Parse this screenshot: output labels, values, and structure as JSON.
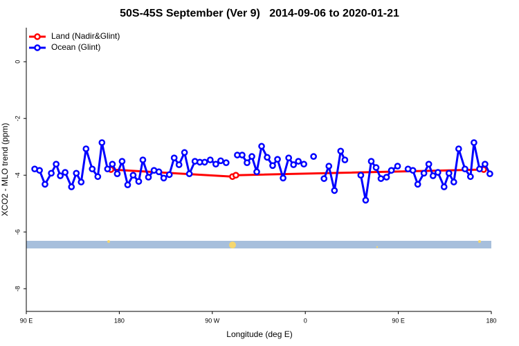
{
  "chart_data": {
    "type": "line",
    "title": "50S-45S September (Ver 9)   2014-09-06 to 2020-01-21",
    "xlabel": "Longitude (deg E)",
    "ylabel": "XCO2 - MLO trend (ppm)",
    "xlim": [
      90,
      540
    ],
    "xticks": [
      {
        "value": 90,
        "label": "90 E"
      },
      {
        "value": 180,
        "label": "180"
      },
      {
        "value": 270,
        "label": "90 W"
      },
      {
        "value": 360,
        "label": "0"
      },
      {
        "value": 450,
        "label": "90 E"
      },
      {
        "value": 540,
        "label": "180"
      }
    ],
    "ylim": [
      -8.8,
      1.2
    ],
    "yticks": [
      0,
      -2,
      -4,
      -6,
      -8
    ],
    "legend": "top-left",
    "series": [
      {
        "name": "Land (Nadir&Glint)",
        "color": "#ff0000",
        "x": [
          171.9,
          289.5,
          292.8,
          532.6
        ],
        "values": [
          -3.8,
          -4.05,
          -4.0,
          -3.8
        ]
      },
      {
        "name": "Ocean (Glint)",
        "color": "#0000ff",
        "x": [
          98.1,
          102.8,
          108.1,
          114.2,
          118.9,
          122.9,
          127.6,
          133.7,
          138.4,
          143.1,
          147.8,
          153.8,
          159.2,
          163.2,
          168.6,
          173.3,
          178.0,
          182.7,
          188.1,
          193.4,
          198.8,
          202.8,
          208.2,
          213.6,
          218.3,
          223.0,
          228.4,
          233.1,
          237.8,
          243.1,
          247.8,
          253.2,
          257.9,
          262.6,
          268.0,
          273.4,
          278.1,
          283.4,
          null,
          294.2,
          298.9,
          303.6,
          308.3,
          313.0,
          317.7,
          323.1,
          328.4,
          333.1,
          338.5,
          343.9,
          348.6,
          353.3,
          358.6,
          null,
          368.0,
          null,
          378.1,
          382.8,
          388.2,
          394.2,
          398.3,
          null,
          413.7,
          418.4,
          423.8,
          428.5,
          433.2,
          438.6,
          443.3,
          449.3,
          null,
          459.4,
          464.1,
          468.8,
          474.8,
          479.5,
          483.6,
          488.3,
          494.3,
          499.0,
          503.7,
          508.4,
          514.5,
          519.8,
          523.2,
          528.6,
          533.9,
          538.6
        ],
        "values": [
          -3.78,
          -3.83,
          -4.32,
          -3.93,
          -3.61,
          -4.02,
          -3.9,
          -4.41,
          -3.93,
          -4.24,
          -3.07,
          -3.78,
          -4.05,
          -2.85,
          -3.78,
          -3.61,
          -3.95,
          -3.51,
          -4.34,
          -4.0,
          -4.22,
          -3.46,
          -4.07,
          -3.83,
          -3.88,
          -4.1,
          -3.98,
          -3.39,
          -3.63,
          -3.2,
          -3.95,
          -3.51,
          -3.54,
          -3.54,
          -3.46,
          -3.61,
          -3.49,
          -3.56,
          null,
          -3.29,
          -3.29,
          -3.56,
          -3.34,
          -3.88,
          -2.98,
          -3.37,
          -3.66,
          -3.44,
          -4.1,
          -3.39,
          -3.63,
          -3.51,
          -3.61,
          null,
          -3.34,
          null,
          -4.12,
          -3.68,
          -4.54,
          -3.15,
          -3.46,
          null,
          -4.0,
          -4.88,
          -3.51,
          -3.73,
          -4.12,
          -4.07,
          -3.83,
          -3.68,
          null,
          -3.78,
          -3.83,
          -4.32,
          -3.93,
          -3.61,
          -4.02,
          -3.9,
          -4.41,
          -3.93,
          -4.24,
          -3.07,
          -3.78,
          -4.05,
          -2.85,
          -3.78,
          -3.61,
          -3.95
        ]
      }
    ]
  }
}
